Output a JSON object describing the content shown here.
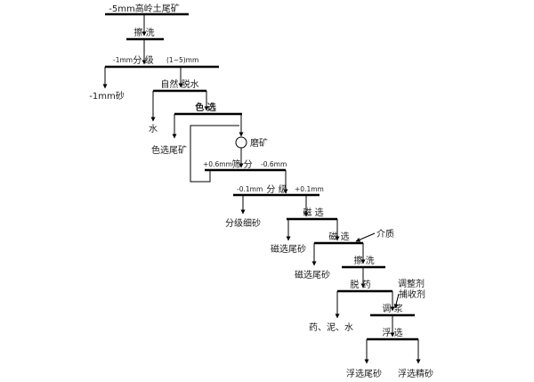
{
  "feed": "-5mm高岭土尾矿",
  "scrub": "擦  洗",
  "classify1": {
    "left": "-1mm",
    "center": "分  级",
    "right": "(1~5)mm"
  },
  "classify1_under": "-1mm砂",
  "dewater": "自然  脱水",
  "dewater_out": "水",
  "color_sort": "色  选",
  "color_tail": "色选尾矿",
  "grind": "磨矿",
  "screen": {
    "left": "+0.6mm",
    "center": "筛  分",
    "right": "-0.6mm"
  },
  "classify2": {
    "left": "-0.1mm",
    "center": "分  级",
    "right": "+0.1mm"
  },
  "classify2_fines": "分级细砂",
  "mag1": "磁  选",
  "mag1_tail": "磁选尾砂",
  "mag2": "磁  选",
  "mag2_medium": "介质",
  "mag2_tail": "磁选尾砂",
  "scrub2": "擦  洗",
  "deslime": "脱  药",
  "deslime_out": "药、泥、水",
  "regulator": "调整剂",
  "collector": "捕收剂",
  "condition": "调  浆",
  "flotation": "浮  选",
  "float_tail": "浮选尾砂",
  "float_conc": "浮选精砂"
}
